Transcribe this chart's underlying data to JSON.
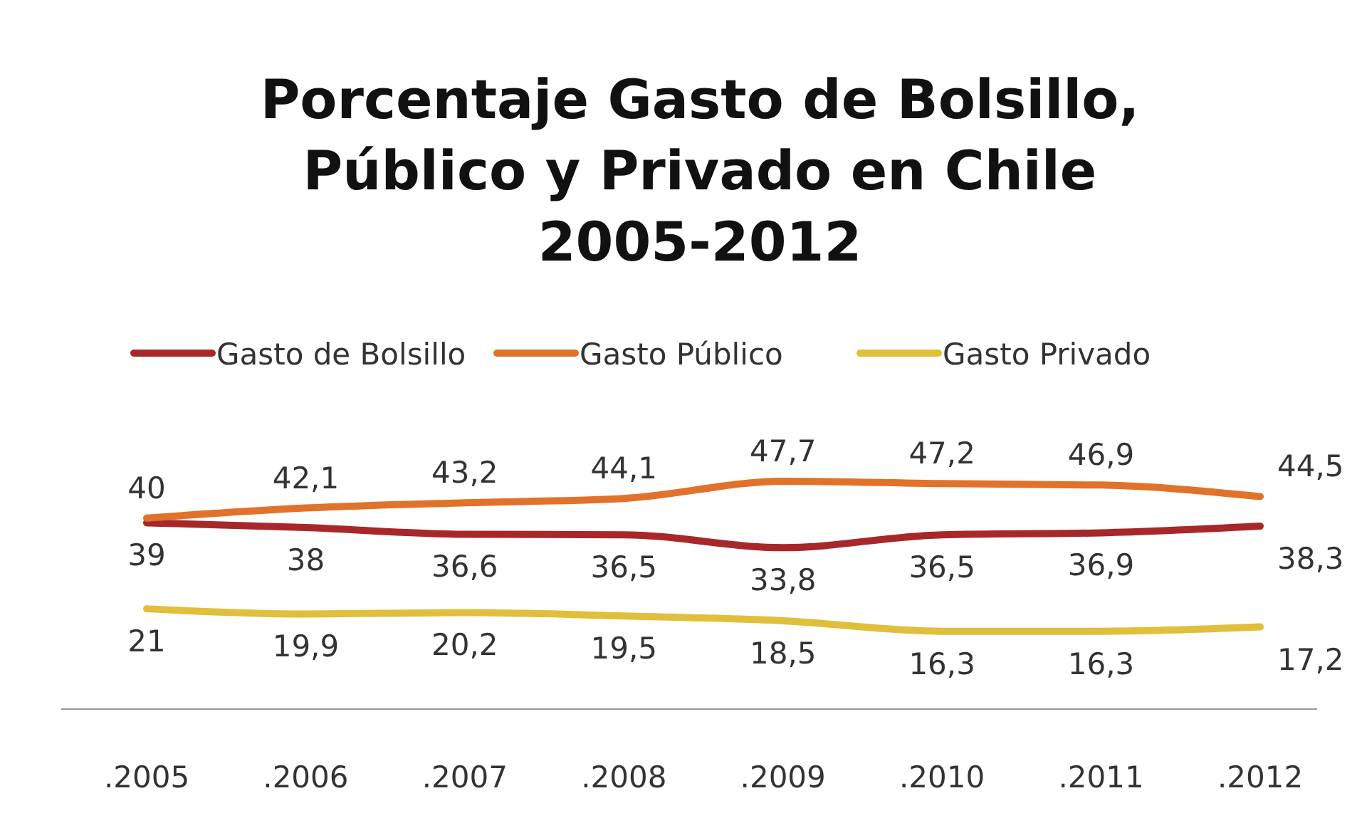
{
  "chart_data": {
    "type": "line",
    "title": "Porcentaje Gasto de Bolsillo, Público y Privado en Chile 2005-2012",
    "categories": [
      ".2005",
      ".2006",
      ".2007",
      ".2008",
      ".2009",
      ".2010",
      ".2011",
      ".2012"
    ],
    "legend": "top",
    "marker": "none",
    "line_style": "solid",
    "tick_labels": "x",
    "series": [
      {
        "name": "Gasto de Bolsillo",
        "color": "#a8272a",
        "values": [
          39,
          38,
          36.6,
          36.5,
          33.8,
          36.5,
          36.9,
          38.3
        ],
        "value_labels": [
          "39",
          "38",
          "36,6",
          "36,5",
          "33,8",
          "36,5",
          "36,9",
          "38,3"
        ]
      },
      {
        "name": "Gasto Público",
        "color": "#e2712a",
        "values": [
          40,
          42.1,
          43.2,
          44.1,
          47.7,
          47.2,
          46.9,
          44.5
        ],
        "value_labels": [
          "40",
          "42,1",
          "43,2",
          "44,1",
          "47,7",
          "47,2",
          "46,9",
          "44,5"
        ]
      },
      {
        "name": "Gasto Privado",
        "color": "#e0bf3a",
        "values": [
          21,
          19.9,
          20.2,
          19.5,
          18.5,
          16.3,
          16.3,
          17.2
        ],
        "value_labels": [
          "21",
          "19,9",
          "20,2",
          "19,5",
          "18,5",
          "16,3",
          "16,3",
          "17,2"
        ]
      }
    ]
  }
}
